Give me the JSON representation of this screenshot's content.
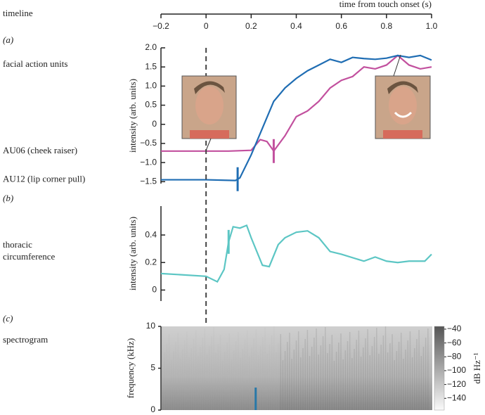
{
  "chart_data": [
    {
      "type": "axis",
      "label": "timeline",
      "title": "time from touch onset (s)",
      "xlim": [
        -0.2,
        1.0
      ],
      "xticks": [
        {
          "value": -0.2,
          "label": "−0.2"
        },
        0,
        0.2,
        0.4,
        0.6,
        0.8,
        {
          "value": 1.0,
          "label": "1.0"
        }
      ]
    },
    {
      "type": "line",
      "panel": "(a)",
      "title": "facial action units",
      "ylabel": "intensity (arb. units)",
      "xlim": [
        -0.2,
        1.0
      ],
      "ylim": [
        -1.55,
        2.0
      ],
      "vline": 0,
      "yticks": [
        {
          "value": 2,
          "label": "2.0"
        },
        1.5,
        {
          "value": 1,
          "label": "1.0"
        },
        0.5,
        0,
        {
          "value": -0.5,
          "label": "−0.5"
        },
        {
          "value": -1,
          "label": "−1.0"
        },
        {
          "value": -1.5,
          "label": "−1.5"
        }
      ],
      "series": [
        {
          "name": "AU06 (cheek raiser)",
          "color": "#c2509e",
          "onset": 0.3,
          "x": [
            -0.2,
            0.1,
            0.2,
            0.24,
            0.27,
            0.3,
            0.35,
            0.4,
            0.45,
            0.5,
            0.55,
            0.6,
            0.65,
            0.7,
            0.75,
            0.8,
            0.85,
            0.9,
            0.95,
            1.0
          ],
          "values": [
            -0.7,
            -0.7,
            -0.68,
            -0.4,
            -0.45,
            -0.7,
            -0.3,
            0.2,
            0.35,
            0.6,
            0.95,
            1.15,
            1.25,
            1.5,
            1.45,
            1.55,
            1.8,
            1.55,
            1.45,
            1.5
          ]
        },
        {
          "name": "AU12 (lip corner pull)",
          "color": "#1f6db3",
          "onset": 0.14,
          "x": [
            -0.2,
            0,
            0.13,
            0.15,
            0.2,
            0.25,
            0.3,
            0.35,
            0.4,
            0.45,
            0.5,
            0.55,
            0.6,
            0.65,
            0.7,
            0.75,
            0.8,
            0.85,
            0.9,
            0.95,
            1.0
          ],
          "values": [
            -1.45,
            -1.45,
            -1.47,
            -1.4,
            -0.8,
            -0.1,
            0.6,
            0.95,
            1.2,
            1.4,
            1.55,
            1.7,
            1.62,
            1.75,
            1.72,
            1.7,
            1.73,
            1.8,
            1.75,
            1.8,
            1.68
          ]
        }
      ]
    },
    {
      "type": "line",
      "panel": "(b)",
      "title": [
        "thoracic",
        "circumference"
      ],
      "ylabel": "intensity (arb. units)",
      "xlim": [
        -0.2,
        1.0
      ],
      "ylim": [
        -0.08,
        0.61
      ],
      "yticks": [
        0,
        0.2,
        0.4
      ],
      "series": [
        {
          "color": "#5cc6c4",
          "onset": 0.1,
          "x": [
            -0.2,
            0,
            0.05,
            0.08,
            0.1,
            0.12,
            0.15,
            0.18,
            0.2,
            0.25,
            0.28,
            0.32,
            0.35,
            0.4,
            0.45,
            0.5,
            0.55,
            0.6,
            0.7,
            0.75,
            0.8,
            0.85,
            0.9,
            0.97,
            1.0
          ],
          "values": [
            0.12,
            0.1,
            0.06,
            0.15,
            0.35,
            0.46,
            0.45,
            0.47,
            0.38,
            0.18,
            0.17,
            0.33,
            0.38,
            0.42,
            0.43,
            0.38,
            0.28,
            0.26,
            0.21,
            0.24,
            0.21,
            0.2,
            0.21,
            0.21,
            0.26
          ]
        }
      ]
    },
    {
      "type": "spectrogram",
      "panel": "(c)",
      "title": "spectrogram",
      "ylabel": "frequency (kHz)",
      "xlim": [
        -0.2,
        1.0
      ],
      "ylim": [
        0,
        10
      ],
      "yticks": [
        0,
        5,
        10
      ],
      "onset": 0.22,
      "onset_color": "#2878a8",
      "colorbar": {
        "label": "dB Hz⁻¹",
        "lim": [
          -157,
          -36
        ],
        "ticks": [
          {
            "value": -40,
            "label": "−40"
          },
          {
            "value": -60,
            "label": "−60"
          },
          {
            "value": -80,
            "label": "−80"
          },
          {
            "value": -100,
            "label": "−100"
          },
          {
            "value": -120,
            "label": "−120"
          },
          {
            "value": -140,
            "label": "−140"
          }
        ]
      }
    }
  ]
}
